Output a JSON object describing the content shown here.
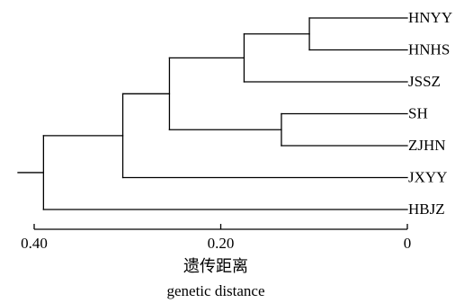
{
  "chart_data": {
    "type": "dendrogram",
    "leaves": [
      "HNYY",
      "HNHS",
      "JSSZ",
      "SH",
      "ZJHN",
      "JXYY",
      "HBJZ"
    ],
    "merges": [
      {
        "id": "c1",
        "children": [
          "HNYY",
          "HNHS"
        ],
        "height": 0.105
      },
      {
        "id": "c2",
        "children": [
          "c1",
          "JSSZ"
        ],
        "height": 0.175
      },
      {
        "id": "c3",
        "children": [
          "SH",
          "ZJHN"
        ],
        "height": 0.135
      },
      {
        "id": "c4",
        "children": [
          "c2",
          "c3"
        ],
        "height": 0.255
      },
      {
        "id": "c5",
        "children": [
          "c4",
          "JXYY"
        ],
        "height": 0.305
      },
      {
        "id": "c6",
        "children": [
          "c5",
          "HBJZ"
        ],
        "height": 0.39
      }
    ],
    "xaxis": {
      "ticks": [
        {
          "value": 0.4,
          "label": "0.40"
        },
        {
          "value": 0.2,
          "label": "0.20"
        },
        {
          "value": 0,
          "label": "0"
        }
      ],
      "range": [
        0.4,
        0
      ],
      "title_cn": "遗传距离",
      "title_en": "genetic distance"
    },
    "color": "#000000"
  }
}
